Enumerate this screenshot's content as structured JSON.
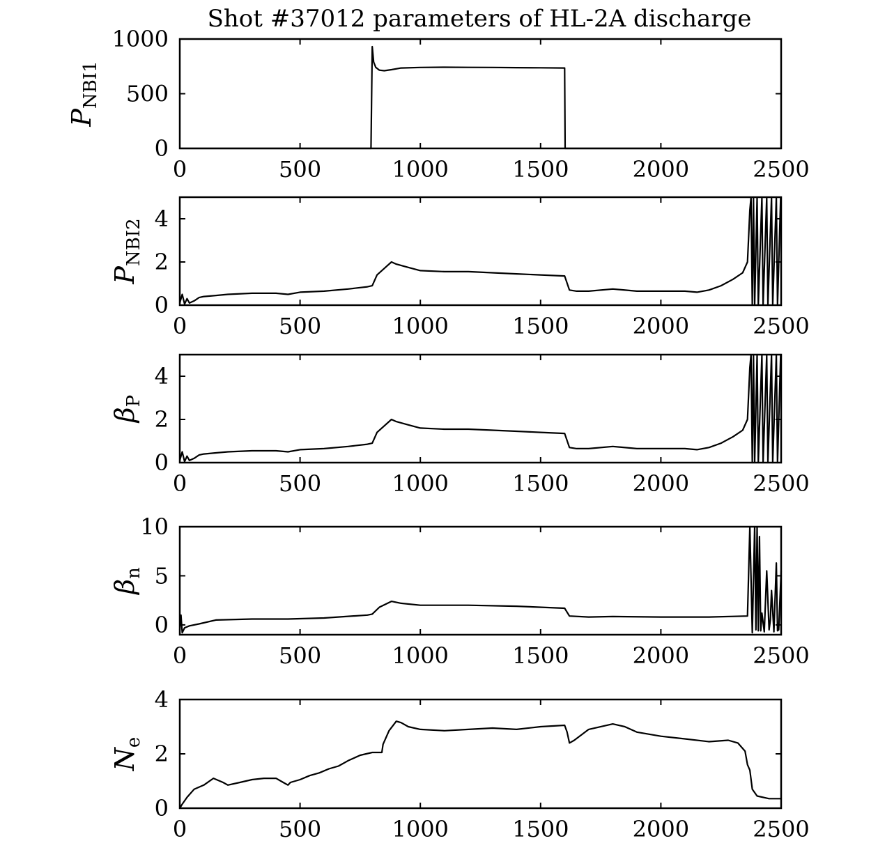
{
  "chart_data": {
    "title": "Shot #37012 parameters of HL-2A discharge",
    "panels": [
      {
        "type": "line",
        "ylabel": {
          "main": "P",
          "sub": "NBI1"
        },
        "xlim": [
          0,
          2500
        ],
        "ylim": [
          0,
          1000
        ],
        "xticks": [
          0,
          500,
          1000,
          1500,
          2000,
          2500
        ],
        "yticks": [
          0,
          500,
          1000
        ],
        "grid": false,
        "series": [
          {
            "x": [
              0,
              795,
              800,
              806,
              815,
              830,
              850,
              880,
              920,
              1000,
              1100,
              1200,
              1300,
              1400,
              1500,
              1598,
              1600,
              1602,
              1610,
              2500
            ],
            "y": [
              0,
              0,
              930,
              790,
              740,
              715,
              710,
              720,
              735,
              740,
              742,
              741,
              740,
              738,
              737,
              735,
              735,
              0,
              0,
              0
            ]
          }
        ]
      },
      {
        "type": "line",
        "ylabel": {
          "main": "P",
          "sub": "NBI2"
        },
        "xlim": [
          0,
          2500
        ],
        "ylim": [
          0,
          5
        ],
        "xticks": [
          0,
          500,
          1000,
          1500,
          2000,
          2500
        ],
        "yticks": [
          0,
          2,
          4
        ],
        "grid": false,
        "series": [
          {
            "x": [
              0,
              10,
              20,
              30,
              40,
              60,
              80,
              100,
              150,
              200,
              300,
              400,
              450,
              500,
              600,
              700,
              780,
              800,
              820,
              850,
              880,
              900,
              950,
              1000,
              1100,
              1200,
              1300,
              1400,
              1500,
              1600,
              1620,
              1650,
              1700,
              1800,
              1900,
              2000,
              2100,
              2150,
              2200,
              2250,
              2300,
              2340,
              2360,
              2370,
              2375,
              2380,
              2385,
              2390,
              2400,
              2405,
              2420,
              2425,
              2440,
              2445,
              2460,
              2465,
              2480,
              2485,
              2498,
              2500
            ],
            "y": [
              0.1,
              0.5,
              0.05,
              0.3,
              0.1,
              0.2,
              0.35,
              0.4,
              0.45,
              0.5,
              0.55,
              0.55,
              0.5,
              0.6,
              0.65,
              0.75,
              0.85,
              0.9,
              1.4,
              1.7,
              2.0,
              1.9,
              1.75,
              1.6,
              1.55,
              1.55,
              1.5,
              1.45,
              1.4,
              1.35,
              0.7,
              0.65,
              0.65,
              0.75,
              0.65,
              0.65,
              0.65,
              0.6,
              0.7,
              0.9,
              1.2,
              1.5,
              2.0,
              4.4,
              5,
              0,
              5,
              0,
              5,
              0,
              5,
              0,
              5,
              0,
              5,
              0,
              5,
              0,
              5,
              5
            ]
          }
        ]
      },
      {
        "type": "line",
        "ylabel": {
          "main": "β",
          "sub": "P"
        },
        "xlim": [
          0,
          2500
        ],
        "ylim": [
          0,
          5
        ],
        "xticks": [
          0,
          500,
          1000,
          1500,
          2000,
          2500
        ],
        "yticks": [
          0,
          2,
          4
        ],
        "grid": false,
        "series": [
          {
            "x": [
              0,
              10,
              20,
              30,
              40,
              60,
              80,
              100,
              150,
              200,
              300,
              400,
              450,
              500,
              600,
              700,
              780,
              800,
              820,
              850,
              880,
              900,
              950,
              1000,
              1100,
              1200,
              1300,
              1400,
              1500,
              1600,
              1620,
              1650,
              1700,
              1800,
              1900,
              2000,
              2100,
              2150,
              2200,
              2250,
              2300,
              2340,
              2360,
              2370,
              2375,
              2380,
              2385,
              2390,
              2400,
              2405,
              2420,
              2425,
              2440,
              2445,
              2460,
              2465,
              2480,
              2485,
              2498,
              2500
            ],
            "y": [
              0.1,
              0.5,
              0.05,
              0.3,
              0.1,
              0.2,
              0.35,
              0.4,
              0.45,
              0.5,
              0.55,
              0.55,
              0.5,
              0.6,
              0.65,
              0.75,
              0.85,
              0.9,
              1.4,
              1.7,
              2.0,
              1.9,
              1.75,
              1.6,
              1.55,
              1.55,
              1.5,
              1.45,
              1.4,
              1.35,
              0.7,
              0.65,
              0.65,
              0.75,
              0.65,
              0.65,
              0.65,
              0.6,
              0.7,
              0.9,
              1.2,
              1.5,
              2.0,
              4.4,
              5,
              0,
              5,
              0,
              5,
              0,
              5,
              0,
              5,
              0,
              5,
              0,
              5,
              0,
              5,
              5
            ]
          }
        ]
      },
      {
        "type": "line",
        "ylabel": {
          "main": "β",
          "sub": "n"
        },
        "xlim": [
          0,
          2500
        ],
        "ylim": [
          -1,
          10
        ],
        "xticks": [
          0,
          500,
          1000,
          1500,
          2000,
          2500
        ],
        "yticks": [
          0,
          5,
          10
        ],
        "grid": false,
        "series": [
          {
            "x": [
              0,
              5,
              10,
              20,
              40,
              80,
              150,
              300,
              450,
              600,
              780,
              800,
              830,
              880,
              920,
              1000,
              1200,
              1400,
              1600,
              1620,
              1700,
              1800,
              2000,
              2200,
              2360,
              2370,
              2380,
              2390,
              2395,
              2400,
              2405,
              2410,
              2415,
              2420,
              2430,
              2440,
              2450,
              2455,
              2460,
              2470,
              2480,
              2485,
              2490,
              2500
            ],
            "y": [
              -0.5,
              1.0,
              -0.8,
              -0.3,
              -0.1,
              0.1,
              0.5,
              0.6,
              0.6,
              0.7,
              1.0,
              1.1,
              1.8,
              2.4,
              2.2,
              2.0,
              2.0,
              1.9,
              1.7,
              0.9,
              0.8,
              0.85,
              0.8,
              0.8,
              0.9,
              10,
              -0.8,
              10,
              -0.5,
              10,
              -0.6,
              9.0,
              -0.6,
              1.2,
              -0.7,
              5.5,
              -0.5,
              0.5,
              3.5,
              -0.7,
              6.3,
              -0.6,
              -0.5,
              5.5
            ]
          }
        ]
      },
      {
        "type": "line",
        "ylabel": {
          "main": "N",
          "sub": "e"
        },
        "xlim": [
          0,
          2500
        ],
        "ylim": [
          0,
          4
        ],
        "xticks": [
          0,
          500,
          1000,
          1500,
          2000,
          2500
        ],
        "yticks": [
          0,
          2,
          4
        ],
        "grid": false,
        "series": [
          {
            "x": [
              0,
              10,
              30,
              60,
              100,
              140,
              180,
              200,
              250,
              300,
              350,
              400,
              430,
              450,
              460,
              500,
              540,
              580,
              620,
              660,
              700,
              750,
              800,
              840,
              845,
              870,
              900,
              920,
              950,
              1000,
              1100,
              1200,
              1300,
              1400,
              1500,
              1600,
              1610,
              1620,
              1640,
              1700,
              1800,
              1850,
              1900,
              2000,
              2100,
              2200,
              2280,
              2320,
              2350,
              2360,
              2370,
              2380,
              2400,
              2450,
              2500
            ],
            "y": [
              0,
              0.15,
              0.4,
              0.7,
              0.85,
              1.1,
              0.95,
              0.85,
              0.95,
              1.05,
              1.1,
              1.1,
              0.95,
              0.85,
              0.95,
              1.05,
              1.2,
              1.3,
              1.45,
              1.55,
              1.75,
              1.95,
              2.05,
              2.05,
              2.35,
              2.85,
              3.2,
              3.15,
              3.0,
              2.9,
              2.85,
              2.9,
              2.95,
              2.9,
              3.0,
              3.05,
              2.8,
              2.4,
              2.5,
              2.9,
              3.1,
              3.0,
              2.8,
              2.65,
              2.55,
              2.45,
              2.5,
              2.4,
              2.1,
              1.6,
              1.4,
              0.7,
              0.45,
              0.35,
              0.35
            ]
          }
        ]
      }
    ]
  }
}
